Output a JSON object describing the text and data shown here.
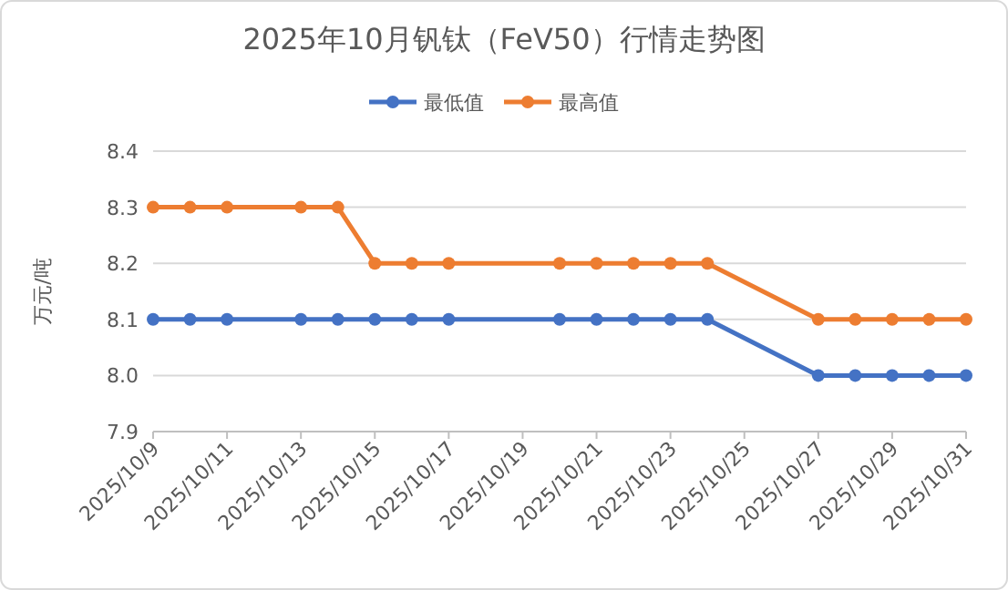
{
  "chart_data": {
    "type": "line",
    "title": "2025年10月钒钛（FeV50）行情走势图",
    "ylabel": "万元/吨",
    "x": [
      "2025-10-09",
      "2025-10-10",
      "2025-10-11",
      "2025-10-13",
      "2025-10-14",
      "2025-10-15",
      "2025-10-16",
      "2025-10-17",
      "2025-10-20",
      "2025-10-21",
      "2025-10-22",
      "2025-10-23",
      "2025-10-24",
      "2025-10-27",
      "2025-10-28",
      "2025-10-29",
      "2025-10-30",
      "2025-10-31"
    ],
    "series": [
      {
        "name": "最低值",
        "color": "#4472c4",
        "values": [
          8.1,
          8.1,
          8.1,
          8.1,
          8.1,
          8.1,
          8.1,
          8.1,
          8.1,
          8.1,
          8.1,
          8.1,
          8.1,
          8.0,
          8.0,
          8.0,
          8.0,
          8.0
        ]
      },
      {
        "name": "最高值",
        "color": "#ed7d31",
        "values": [
          8.3,
          8.3,
          8.3,
          8.3,
          8.3,
          8.2,
          8.2,
          8.2,
          8.2,
          8.2,
          8.2,
          8.2,
          8.2,
          8.1,
          8.1,
          8.1,
          8.1,
          8.1
        ]
      }
    ],
    "xlim": [
      "2025-10-09",
      "2025-10-31"
    ],
    "xticks": [
      {
        "value": "2025-10-09",
        "label": "2025/10/9"
      },
      {
        "value": "2025-10-11",
        "label": "2025/10/11"
      },
      {
        "value": "2025-10-13",
        "label": "2025/10/13"
      },
      {
        "value": "2025-10-15",
        "label": "2025/10/15"
      },
      {
        "value": "2025-10-17",
        "label": "2025/10/17"
      },
      {
        "value": "2025-10-19",
        "label": "2025/10/19"
      },
      {
        "value": "2025-10-21",
        "label": "2025/10/21"
      },
      {
        "value": "2025-10-23",
        "label": "2025/10/23"
      },
      {
        "value": "2025-10-25",
        "label": "2025/10/25"
      },
      {
        "value": "2025-10-27",
        "label": "2025/10/27"
      },
      {
        "value": "2025-10-29",
        "label": "2025/10/29"
      },
      {
        "value": "2025-10-31",
        "label": "2025/10/31"
      }
    ],
    "ylim": [
      7.9,
      8.4
    ],
    "yticks": [
      {
        "value": 7.9,
        "label": "7.9"
      },
      {
        "value": 8.0,
        "label": "8.0"
      },
      {
        "value": 8.1,
        "label": "8.1"
      },
      {
        "value": 8.2,
        "label": "8.2"
      },
      {
        "value": 8.3,
        "label": "8.3"
      },
      {
        "value": 8.4,
        "label": "8.4"
      }
    ],
    "grid": "y",
    "legend": "top",
    "marker": "circle",
    "line_style": "solid"
  }
}
